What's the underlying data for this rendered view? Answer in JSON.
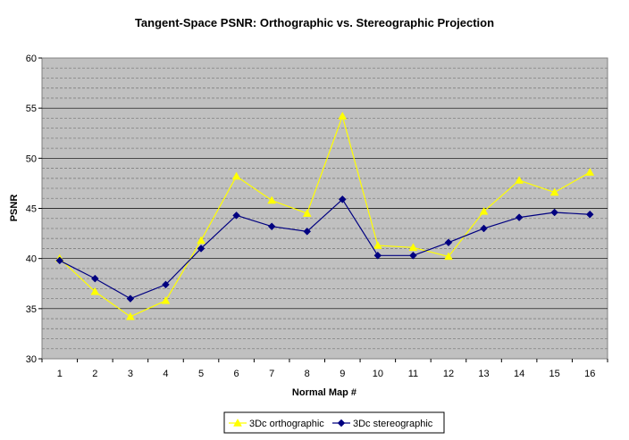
{
  "chart_data": {
    "type": "line",
    "title": "Tangent-Space PSNR: Orthographic vs. Stereographic Projection",
    "xlabel": "Normal Map #",
    "ylabel": "PSNR",
    "x": [
      1,
      2,
      3,
      4,
      5,
      6,
      7,
      8,
      9,
      10,
      11,
      12,
      13,
      14,
      15,
      16
    ],
    "ylim": [
      30,
      60
    ],
    "yticks": [
      30,
      35,
      40,
      45,
      50,
      55,
      60
    ],
    "minor_grid_step": 1,
    "grid": true,
    "legend_position": "bottom",
    "plot_background": "#c0c0c0",
    "series": [
      {
        "name": "3Dc orthographic",
        "color": "#ffff00",
        "marker": "triangle",
        "values": [
          40.0,
          36.7,
          34.2,
          35.8,
          41.8,
          48.2,
          45.8,
          44.5,
          54.2,
          41.3,
          41.1,
          40.2,
          44.7,
          47.8,
          46.6,
          48.6
        ]
      },
      {
        "name": "3Dc stereographic",
        "color": "#000080",
        "marker": "diamond",
        "values": [
          39.8,
          38.0,
          36.0,
          37.4,
          41.0,
          44.3,
          43.2,
          42.7,
          45.9,
          40.3,
          40.3,
          41.6,
          43.0,
          44.1,
          44.6,
          44.4
        ]
      }
    ]
  }
}
